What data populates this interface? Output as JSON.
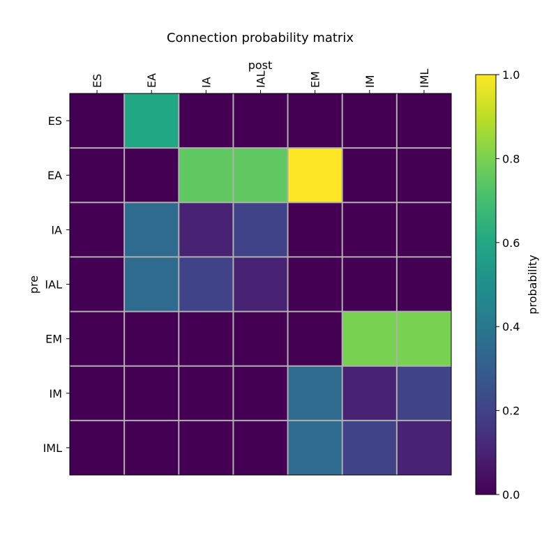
{
  "chart_data": {
    "type": "heatmap",
    "title": "Connection probability matrix",
    "xlabel": "post",
    "ylabel": "pre",
    "x_categories": [
      "ES",
      "EA",
      "IA",
      "IAL",
      "EM",
      "IM",
      "IML"
    ],
    "y_categories": [
      "ES",
      "EA",
      "IA",
      "IAL",
      "EM",
      "IM",
      "IML"
    ],
    "values": [
      [
        0.0,
        0.6,
        0.0,
        0.0,
        0.0,
        0.0,
        0.0
      ],
      [
        0.0,
        0.0,
        0.75,
        0.75,
        1.0,
        0.0,
        0.0
      ],
      [
        0.0,
        0.35,
        0.1,
        0.2,
        0.0,
        0.0,
        0.0
      ],
      [
        0.0,
        0.35,
        0.2,
        0.1,
        0.0,
        0.0,
        0.0
      ],
      [
        0.0,
        0.0,
        0.0,
        0.0,
        0.0,
        0.8,
        0.8
      ],
      [
        0.0,
        0.0,
        0.0,
        0.0,
        0.35,
        0.1,
        0.2
      ],
      [
        0.0,
        0.0,
        0.0,
        0.0,
        0.35,
        0.2,
        0.1
      ]
    ],
    "grid": true,
    "x_ticks_position": "top",
    "colorbar": {
      "label": "probability",
      "range": [
        0.0,
        1.0
      ],
      "ticks": [
        "0.0",
        "0.2",
        "0.4",
        "0.6",
        "0.8",
        "1.0"
      ],
      "colormap": "viridis"
    }
  }
}
